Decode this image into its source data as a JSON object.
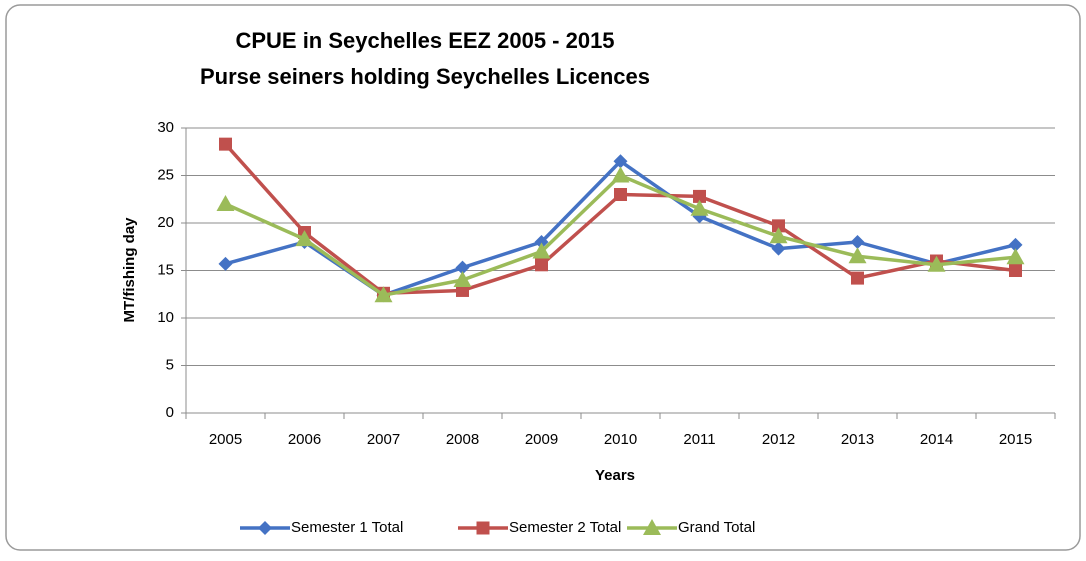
{
  "chart_data": {
    "type": "line",
    "title": [
      "CPUE in Seychelles EEZ   2005 - 2015",
      "Purse seiners holding Seychelles Licences"
    ],
    "x_label": "Years",
    "y_label": "MT/fishing day",
    "categories": [
      "2005",
      "2006",
      "2007",
      "2008",
      "2009",
      "2010",
      "2011",
      "2012",
      "2013",
      "2014",
      "2015"
    ],
    "series": [
      {
        "name": "Semester 1 Total",
        "color": "#4472c4",
        "marker": "diamond",
        "values": [
          15.7,
          18.0,
          12.4,
          15.3,
          18.0,
          26.5,
          20.7,
          17.3,
          18.0,
          15.7,
          17.7
        ]
      },
      {
        "name": "Semester 2 Total",
        "color": "#c0504d",
        "marker": "square",
        "values": [
          28.3,
          19.0,
          12.6,
          12.9,
          15.6,
          23.0,
          22.8,
          19.7,
          14.2,
          16.0,
          15.0
        ]
      },
      {
        "name": "Grand Total",
        "color": "#9bbb59",
        "marker": "triangle",
        "values": [
          22.0,
          18.3,
          12.4,
          14.0,
          17.0,
          25.0,
          21.5,
          18.6,
          16.5,
          15.6,
          16.4
        ]
      }
    ],
    "ylim": [
      0,
      30
    ],
    "yticks": [
      0,
      5,
      10,
      15,
      20,
      25,
      30
    ],
    "grid": true,
    "legend": "bottom"
  }
}
